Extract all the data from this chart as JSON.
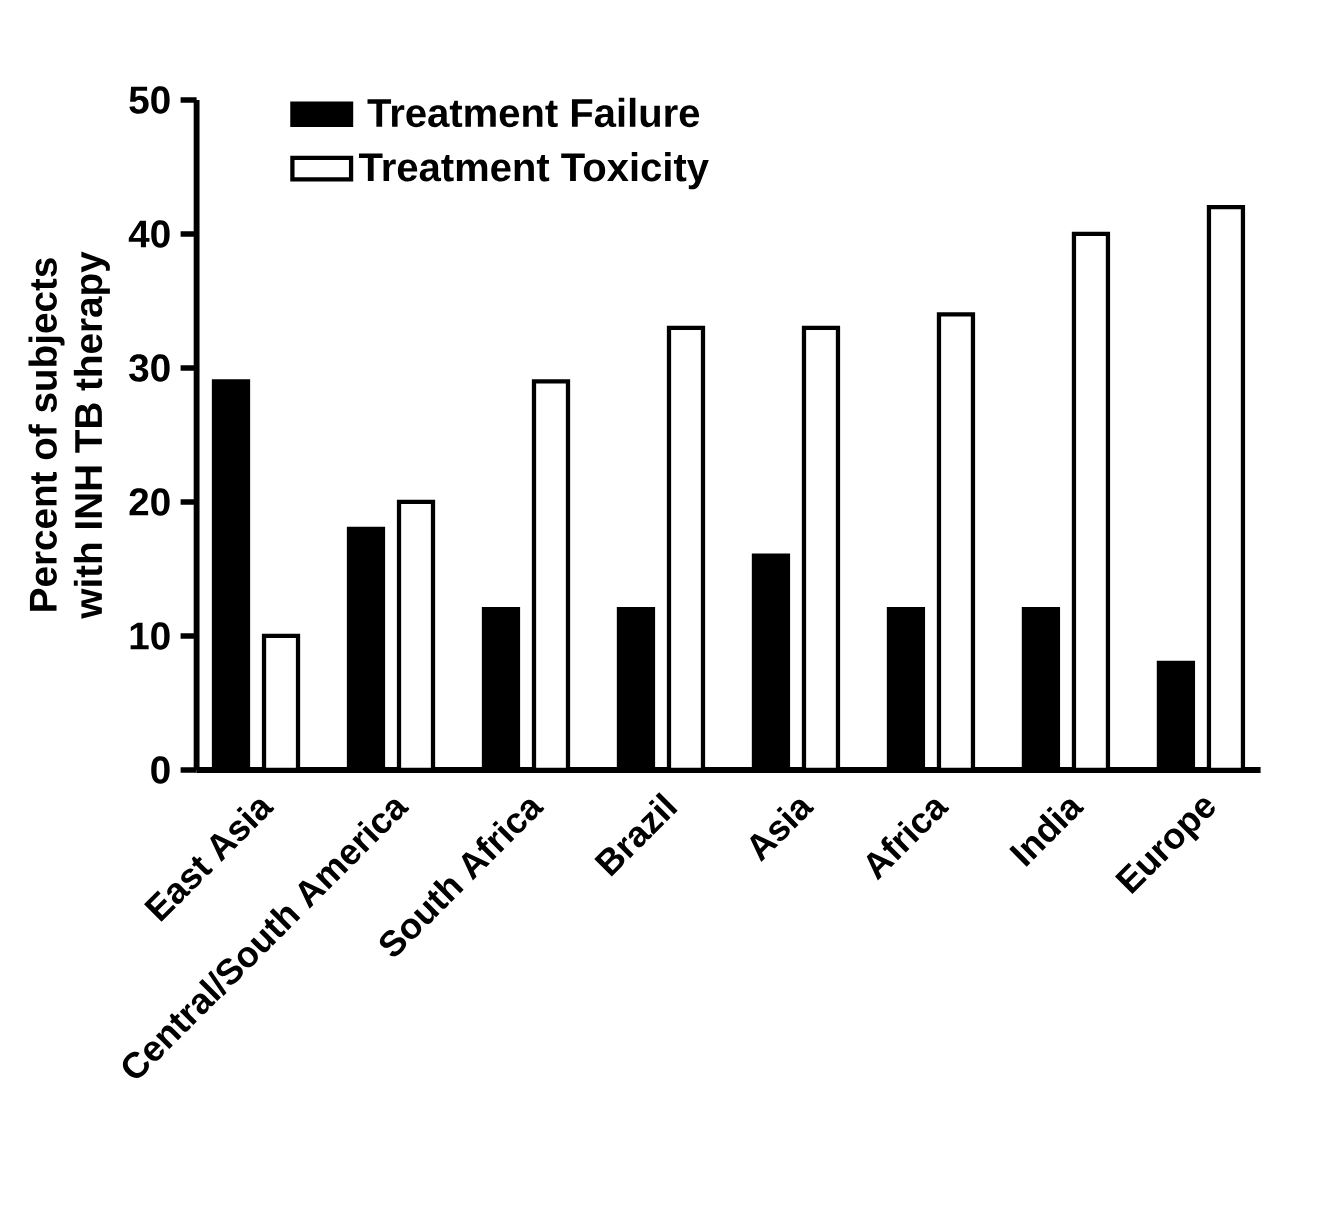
{
  "chart_data": {
    "type": "bar",
    "ylabel": "Percent of subjects\nwith INH TB therapy",
    "categories": [
      "East Asia",
      "Central/South America",
      "South Africa",
      "Brazil",
      "Asia",
      "Africa",
      "India",
      "Europe"
    ],
    "series": [
      {
        "name": "Treatment Failure",
        "color": "#000000",
        "values": [
          29,
          18,
          12,
          12,
          16,
          12,
          12,
          8
        ]
      },
      {
        "name": "Treatment Toxicity",
        "color": "#ffffff",
        "values": [
          10,
          20,
          29,
          33,
          33,
          34,
          40,
          42
        ]
      }
    ],
    "ylim": [
      0,
      50
    ],
    "yticks": [
      0,
      10,
      20,
      30,
      40,
      50
    ],
    "grid": false,
    "legend": "top left"
  }
}
